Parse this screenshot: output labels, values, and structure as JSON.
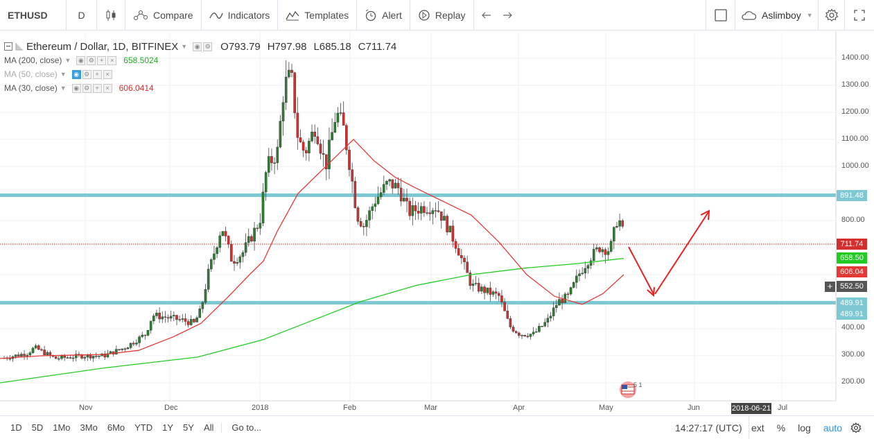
{
  "toolbar": {
    "symbol": "ETHUSD",
    "interval": "D",
    "compare": "Compare",
    "indicators": "Indicators",
    "templates": "Templates",
    "alert": "Alert",
    "replay": "Replay",
    "username": "Aslimboy"
  },
  "legend": {
    "title": "Ethereum / Dollar, 1D, BITFINEX",
    "open": "O793.79",
    "high": "H797.98",
    "low": "L685.18",
    "close": "C711.74",
    "ma200_label": "MA (200, close)",
    "ma200_value": "658.5024",
    "ma50_label": "MA (50, close)",
    "ma30_label": "MA (30, close)",
    "ma30_value": "606.0414"
  },
  "price_labels": {
    "resistance": "891.48",
    "last": "711.74",
    "ma200": "658.50",
    "ma30": "606.04",
    "crosshair": "552.50",
    "support_a": "489.91",
    "support_b": "489.91"
  },
  "axis": {
    "y_ticks": [
      "1400.00",
      "1300.00",
      "1200.00",
      "1100.00",
      "1000.00",
      "800.00",
      "400.00",
      "300.00",
      "200.00"
    ],
    "x_ticks": [
      "Nov",
      "Dec",
      "2018",
      "Feb",
      "Mar",
      "Apr",
      "May",
      "Jun",
      "Jul"
    ],
    "date_tag": "2018-06-21"
  },
  "badge": {
    "count": "5 1"
  },
  "bottombar": {
    "ranges": [
      "1D",
      "5D",
      "1Mo",
      "3Mo",
      "6Mo",
      "YTD",
      "1Y",
      "5Y",
      "All"
    ],
    "goto": "Go to...",
    "time": "14:27:17 (UTC)",
    "ext": "ext",
    "percent": "%",
    "log": "log",
    "auto": "auto"
  },
  "colors": {
    "up": "#2e7d32",
    "down": "#d32f2f",
    "ma200": "#22cc22",
    "ma30": "#e53935",
    "level": "#7ec8d4",
    "auto": "#2196f3"
  },
  "chart_data": {
    "type": "candlestick",
    "symbol": "ETHUSD",
    "interval": "1D",
    "exchange": "BITFINEX",
    "y_range": [
      140,
      1460
    ],
    "y_ticks": [
      200,
      300,
      400,
      800,
      1000,
      1100,
      1200,
      1300,
      1400
    ],
    "x_labels": [
      "Nov",
      "Dec",
      "2018",
      "Feb",
      "Mar",
      "Apr",
      "May",
      "Jun",
      "Jul"
    ],
    "horizontal_levels": [
      891.48,
      489.91
    ],
    "last_close": 711.74,
    "ma200_last": 658.5024,
    "ma30_last": 606.0414,
    "projection_arrows": [
      "down then up"
    ]
  }
}
